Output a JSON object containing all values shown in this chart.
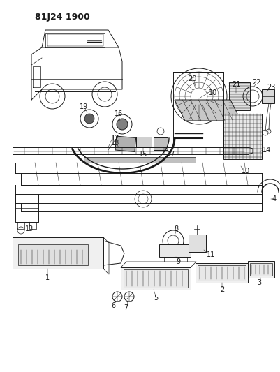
{
  "title": "81J24 1900",
  "bg_color": "#ffffff",
  "line_color": "#1a1a1a",
  "title_fontsize": 9,
  "label_fontsize": 7,
  "fig_width": 4.01,
  "fig_height": 5.33,
  "dpi": 100
}
